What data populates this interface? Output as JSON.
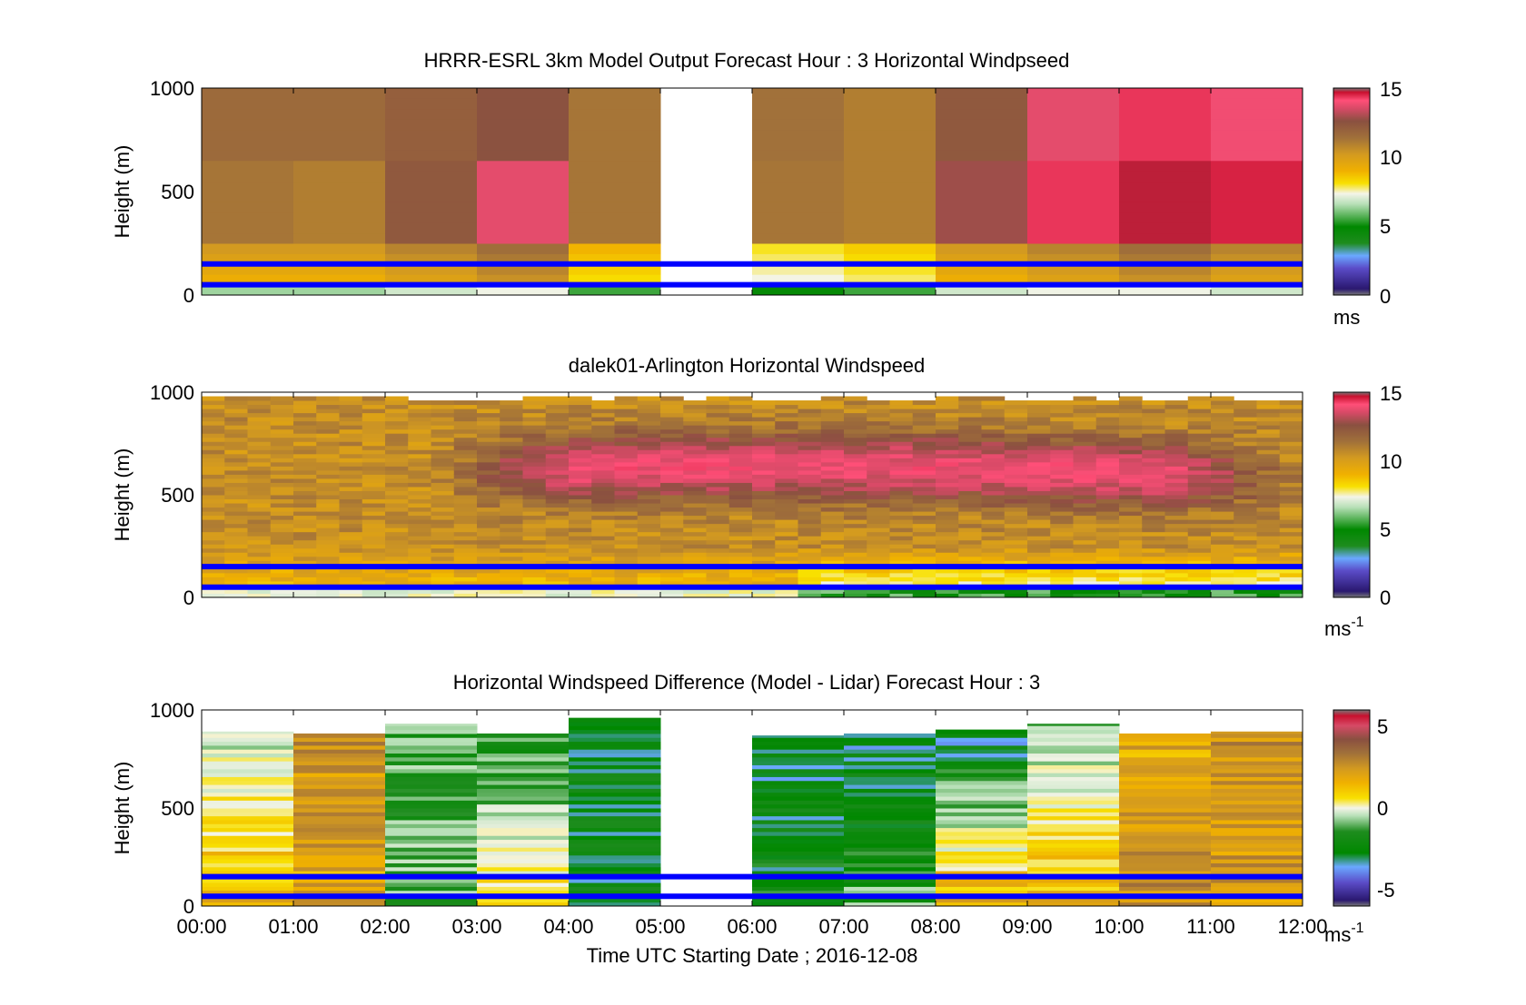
{
  "chart_data": [
    {
      "type": "heatmap",
      "title": "HRRR-ESRL 3km Model Output   Forecast Hour : 3 Horizontal Windpseed",
      "ylabel": "Height (m)",
      "xlabel": "",
      "ylim": [
        0,
        1000
      ],
      "yticks": [
        "0",
        "500",
        "1000"
      ],
      "xlim": [
        0,
        12
      ],
      "colorbar": {
        "range": [
          0,
          15
        ],
        "ticks": [
          "0",
          "5",
          "10",
          "15"
        ],
        "unit": "ms"
      },
      "bands": {
        "top_edges": [
          1000,
          1000,
          1000,
          1000,
          1000,
          null,
          1000,
          1000,
          1000,
          1000,
          1000,
          1000
        ]
      },
      "hlines": [
        150,
        50
      ]
    },
    {
      "type": "heatmap",
      "title": "dalek01-Arlington  Horizontal Windspeed",
      "ylabel": "Height (m)",
      "xlabel": "",
      "ylim": [
        0,
        1000
      ],
      "yticks": [
        "0",
        "500",
        "1000"
      ],
      "xlim": [
        0,
        12
      ],
      "colorbar": {
        "range": [
          0,
          15
        ],
        "ticks": [
          "0",
          "5",
          "10",
          "15"
        ],
        "unit": "ms",
        "unit_sup": "-1"
      },
      "hlines": [
        150,
        50
      ]
    },
    {
      "type": "heatmap",
      "title": "Horizontal Windspeed Difference (Model - Lidar) Forecast Hour : 3",
      "ylabel": "Height (m)",
      "xlabel": "Time UTC  Starting Date ; 2016-12-08",
      "ylim": [
        0,
        1000
      ],
      "yticks": [
        "0",
        "500",
        "1000"
      ],
      "xlim": [
        0,
        12
      ],
      "xticks": [
        "00:00",
        "01:00",
        "02:00",
        "03:00",
        "04:00",
        "05:00",
        "06:00",
        "07:00",
        "08:00",
        "09:00",
        "10:00",
        "11:00",
        "12:00"
      ],
      "colorbar": {
        "range": [
          -6,
          6
        ],
        "ticks": [
          "-5",
          "0",
          "5"
        ],
        "unit": "ms",
        "unit_sup": "-1"
      },
      "bands": {
        "top_edges": [
          890,
          880,
          930,
          880,
          960,
          null,
          870,
          880,
          900,
          930,
          880,
          890
        ]
      },
      "hlines": [
        150,
        50
      ]
    }
  ],
  "colors": {
    "hline": "#0000ff",
    "windspeed_scale": [
      "#333333",
      "#2a1870",
      "#5b4cc8",
      "#6aa8ff",
      "#1e8c1e",
      "#008800",
      "#b8e0b8",
      "#f4f4e8",
      "#f8e000",
      "#f0b000",
      "#d39a20",
      "#a0703a",
      "#8a5040",
      "#d64a66",
      "#ff4f78",
      "#c8102e",
      "#777777"
    ],
    "difference_scale": [
      "#777777",
      "#2a1870",
      "#5b4cc8",
      "#6aa8ff",
      "#008800",
      "#1e8c1e",
      "#b8e0b8",
      "#f4f4e8",
      "#f8e000",
      "#f0b000",
      "#d39a20",
      "#a0703a",
      "#8a5040",
      "#d64a66",
      "#c8102e",
      "#777777"
    ]
  }
}
